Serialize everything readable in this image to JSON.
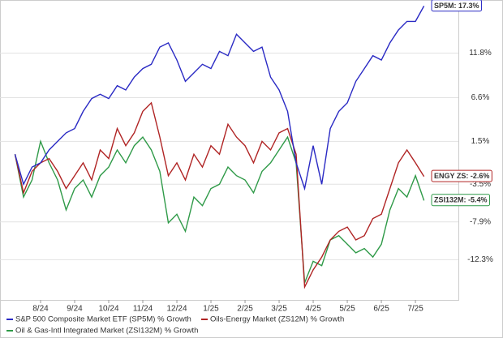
{
  "chart_data": {
    "type": "line",
    "x": [
      -0.75,
      -0.5,
      -0.25,
      0,
      0.25,
      0.5,
      0.75,
      1,
      1.25,
      1.5,
      1.75,
      2,
      2.25,
      2.5,
      2.75,
      3,
      3.25,
      3.5,
      3.75,
      4,
      4.25,
      4.5,
      4.75,
      5,
      5.25,
      5.5,
      5.75,
      6,
      6.25,
      6.5,
      6.75,
      7,
      7.25,
      7.5,
      7.75,
      8,
      8.25,
      8.5,
      8.75,
      9,
      9.25,
      9.5,
      9.75,
      10,
      10.25,
      10.5,
      10.75,
      11,
      11.25
    ],
    "xlim": [
      -1.19,
      12.26
    ],
    "xticks": [
      {
        "value": 0,
        "label": "8/24"
      },
      {
        "value": 1,
        "label": "9/24"
      },
      {
        "value": 2,
        "label": "10/24"
      },
      {
        "value": 3,
        "label": "11/24"
      },
      {
        "value": 4,
        "label": "12/24"
      },
      {
        "value": 5,
        "label": "1/25"
      },
      {
        "value": 6,
        "label": "2/25"
      },
      {
        "value": 7,
        "label": "3/25"
      },
      {
        "value": 8,
        "label": "4/25"
      },
      {
        "value": 9,
        "label": "5/25"
      },
      {
        "value": 10,
        "label": "6/25"
      },
      {
        "value": 11,
        "label": "7/25"
      }
    ],
    "ylim": [
      -17,
      18
    ],
    "yticks": [
      {
        "value": 11.8,
        "label": "11.8%"
      },
      {
        "value": 6.6,
        "label": "6.6%"
      },
      {
        "value": 1.5,
        "label": "1.5%"
      },
      {
        "value": -3.5,
        "label": "-3.5%"
      },
      {
        "value": -7.9,
        "label": "-7.9%"
      },
      {
        "value": -12.3,
        "label": "-12.3%"
      }
    ],
    "grid": true,
    "series": [
      {
        "name": "S&P 500 Composite Market ETF (SP5M) % Growth",
        "color": "#2a2ac4",
        "values": [
          0.0,
          -3.5,
          -1.5,
          -1.0,
          0.5,
          1.5,
          2.5,
          3.0,
          5.0,
          6.5,
          7.0,
          6.5,
          8.0,
          7.5,
          9.0,
          10.0,
          10.5,
          12.5,
          13.0,
          11.0,
          8.5,
          9.5,
          10.5,
          10.0,
          12.0,
          11.5,
          14.0,
          13.0,
          12.0,
          12.5,
          9.0,
          7.5,
          5.0,
          -1.0,
          -4.0,
          1.0,
          -3.5,
          3.0,
          5.0,
          6.0,
          8.5,
          10.0,
          11.5,
          11.0,
          13.0,
          14.5,
          15.5,
          15.5,
          17.3
        ]
      },
      {
        "name": "Oils-Energy Market (ZS12M) % Growth",
        "color": "#b02424",
        "values": [
          0.0,
          -4.5,
          -2.0,
          -1.0,
          -0.5,
          -2.0,
          -4.0,
          -2.5,
          -1.0,
          -3.0,
          0.5,
          -0.5,
          3.0,
          1.0,
          2.5,
          5.0,
          6.0,
          2.0,
          -2.5,
          -1.0,
          -3.0,
          0.0,
          -1.5,
          1.0,
          0.0,
          3.5,
          2.0,
          1.0,
          -1.0,
          1.5,
          0.5,
          2.5,
          3.0,
          0.0,
          -15.5,
          -13.5,
          -12.0,
          -10.0,
          -9.0,
          -8.5,
          -10.0,
          -9.5,
          -7.5,
          -7.0,
          -4.0,
          -1.0,
          0.5,
          -1.0,
          -2.6
        ]
      },
      {
        "name": "Oil & Gas-Intl Integrated Market (ZSI132M) % Growth",
        "color": "#2f9a48",
        "values": [
          0.0,
          -5.0,
          -3.0,
          1.5,
          -1.0,
          -3.0,
          -6.5,
          -4.0,
          -3.0,
          -5.0,
          -2.5,
          -1.5,
          0.5,
          -1.0,
          1.0,
          2.0,
          0.5,
          -2.0,
          -8.0,
          -7.0,
          -9.0,
          -5.0,
          -6.0,
          -4.0,
          -3.5,
          -1.5,
          -2.5,
          -3.0,
          -4.5,
          -2.0,
          -1.0,
          0.5,
          2.0,
          -1.0,
          -15.0,
          -12.5,
          -13.0,
          -10.0,
          -9.5,
          -10.5,
          -11.5,
          -11.0,
          -12.0,
          -10.5,
          -6.5,
          -4.0,
          -5.0,
          -2.5,
          -5.4
        ]
      }
    ],
    "annotations": [
      "SP5M: 17.3%",
      "ENGY ZS: -2.6%",
      "ZSI132M: -5.4%"
    ]
  }
}
